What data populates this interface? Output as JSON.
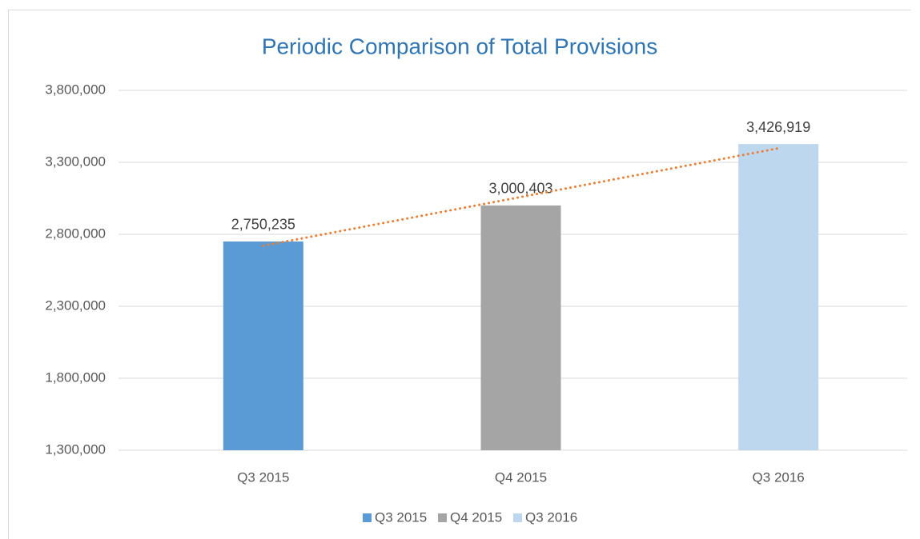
{
  "chart_data": {
    "type": "bar",
    "title": "Periodic Comparison of Total Provisions",
    "categories": [
      "Q3 2015",
      "Q4 2015",
      "Q3 2016"
    ],
    "values": [
      2750235,
      3000403,
      3426919
    ],
    "value_labels": [
      "2,750,235",
      "3,000,403",
      "3,426,919"
    ],
    "colors": [
      "#5b9bd5",
      "#a5a5a5",
      "#bdd7ee"
    ],
    "ylim": [
      1300000,
      3800000
    ],
    "yticks": [
      {
        "value": 1300000,
        "label": "1,300,000"
      },
      {
        "value": 1800000,
        "label": "1,800,000"
      },
      {
        "value": 2300000,
        "label": "2,300,000"
      },
      {
        "value": 2800000,
        "label": "2,800,000"
      },
      {
        "value": 3300000,
        "label": "3,300,000"
      },
      {
        "value": 3800000,
        "label": "3,800,000"
      }
    ],
    "grid": true,
    "legend": "bottom",
    "trendline": {
      "type": "linear",
      "color": "#ed7d31"
    }
  }
}
